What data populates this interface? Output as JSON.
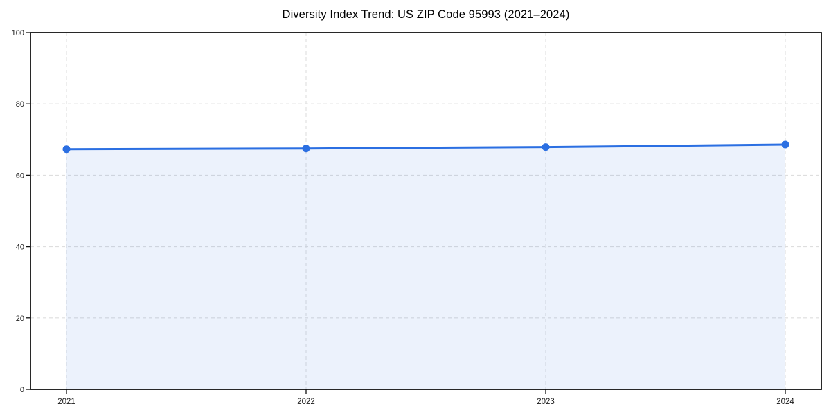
{
  "page": {
    "background": "#ffffff"
  },
  "chart_data": {
    "type": "area",
    "title": "Diversity Index Trend: US ZIP Code 95993 (2021–2024)",
    "xlabel": "",
    "ylabel": "",
    "categories": [
      "2021",
      "2022",
      "2023",
      "2024"
    ],
    "series": [
      {
        "name": "Diversity Index",
        "values": [
          67.3,
          67.5,
          67.9,
          68.6
        ]
      }
    ],
    "ylim": [
      0,
      100
    ],
    "yticks": [
      0,
      20,
      40,
      60,
      80,
      100
    ],
    "grid": true,
    "grid_style": "dashed",
    "legend_position": "none",
    "colors": {
      "line": "#2b6fe2",
      "marker": "#2b6fe2",
      "fill": "rgba(43,111,226,0.09)",
      "grid": "#dedede",
      "spine": "#111111",
      "tick": "#111111",
      "tick_label": "#1a1a1a",
      "title": "#000000"
    }
  }
}
